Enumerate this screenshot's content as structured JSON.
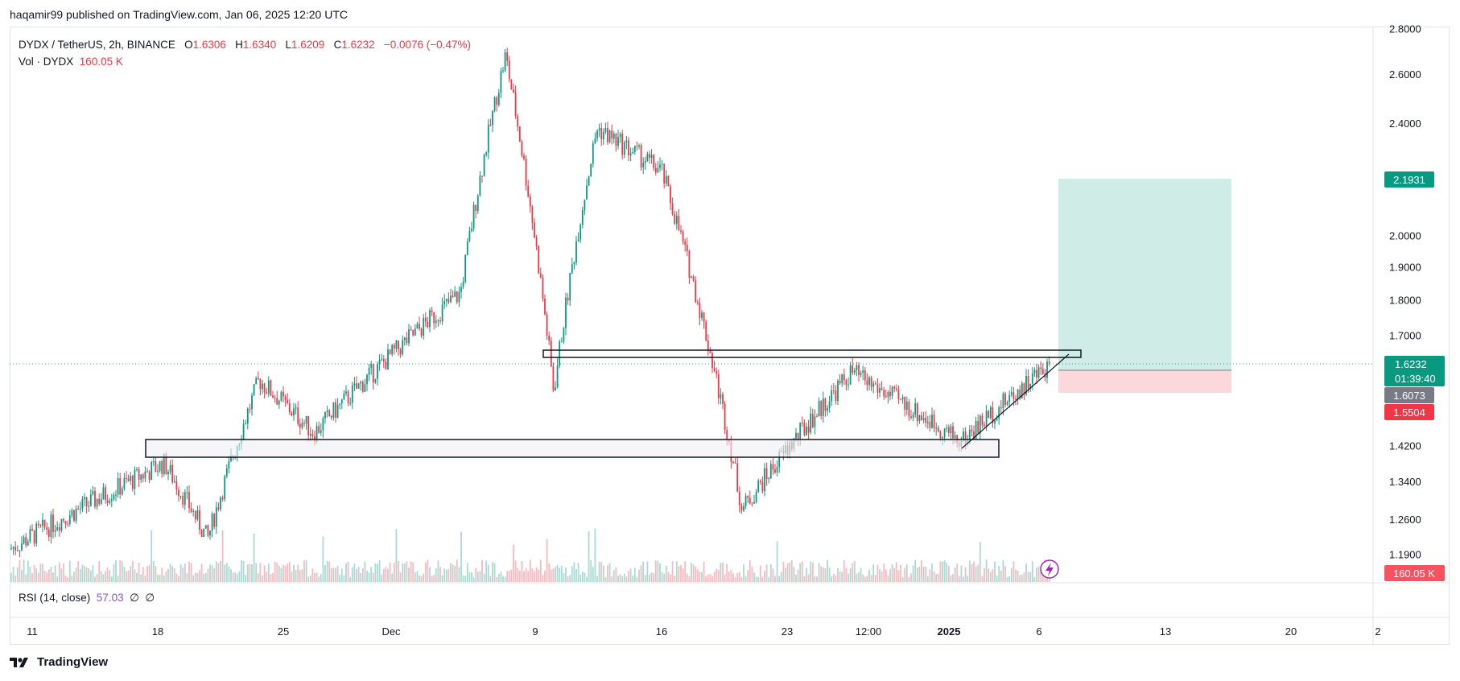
{
  "header": {
    "published_line": "haqamir99 published on TradingView.com, Jan 06, 2025 12:20 UTC"
  },
  "legend": {
    "symbol": "DYDX / TetherUS, 2h, BINANCE",
    "o_label": "O",
    "o_value": "1.6306",
    "h_label": "H",
    "h_value": "1.6340",
    "l_label": "L",
    "l_value": "1.6209",
    "c_label": "C",
    "c_value": "1.6232",
    "change": "−0.0076 (−0.47%)",
    "vol_label": "Vol · DYDX",
    "vol_value": "160.05 K"
  },
  "rsi": {
    "label": "RSI (14, close)",
    "value": "57.03",
    "extra1": "∅",
    "extra2": "∅"
  },
  "brand": {
    "name": "TradingView"
  },
  "colors": {
    "up": "#089981",
    "down": "#f23645",
    "tp_zone": "#cfece6",
    "sl_zone": "#fcd8dc",
    "last_line": "#26a69a"
  },
  "chart_data": {
    "type": "candlestick",
    "y_axis_scale": "log",
    "y_ticks": [
      "2.8000",
      "2.6000",
      "2.4000",
      "2.0000",
      "1.9000",
      "1.8000",
      "1.7000",
      "1.4200",
      "1.3400",
      "1.2600",
      "1.1900"
    ],
    "x_ticks": [
      "11",
      "18",
      "25",
      "Dec",
      "9",
      "16",
      "23",
      "12:00",
      "2025",
      "6",
      "13",
      "20",
      "2"
    ],
    "price_labels": {
      "target": "2.1931",
      "last": "1.6232",
      "countdown": "01:39:40",
      "entry": "1.6073",
      "stop": "1.5504",
      "volume": "160.05 K"
    },
    "key_points": [
      {
        "x": "Nov 11",
        "price": 1.2
      },
      {
        "x": "Nov 18",
        "price": 1.38
      },
      {
        "x": "Nov 21",
        "price": 1.22
      },
      {
        "x": "Nov 24",
        "price": 1.58
      },
      {
        "x": "Nov 27",
        "price": 1.45
      },
      {
        "x": "Dec 4",
        "price": 1.82
      },
      {
        "x": "Dec 8",
        "price": 2.68
      },
      {
        "x": "Dec 9",
        "price": 1.55
      },
      {
        "x": "Dec 11",
        "price": 2.38
      },
      {
        "x": "Dec 16",
        "price": 2.22
      },
      {
        "x": "Dec 20",
        "price": 1.28
      },
      {
        "x": "Dec 26",
        "price": 1.6
      },
      {
        "x": "Jan 1",
        "price": 1.43
      },
      {
        "x": "Jan 6",
        "price": 1.6232
      }
    ],
    "zones": [
      {
        "kind": "support-box",
        "top": 1.435,
        "bottom": 1.405
      },
      {
        "kind": "resistance-box",
        "top": 1.653,
        "bottom": 1.638
      }
    ],
    "position": {
      "entry": 1.6073,
      "target": 2.1931,
      "stop": 1.5504
    }
  }
}
